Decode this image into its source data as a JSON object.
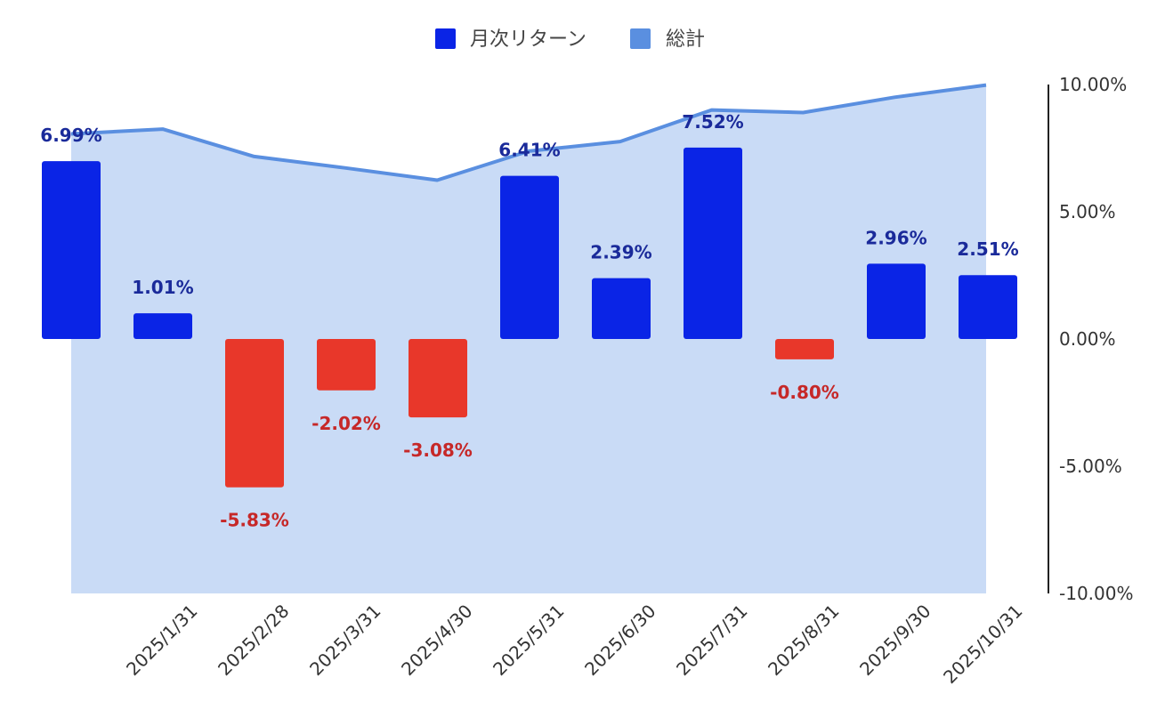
{
  "chart_data": {
    "type": "bar",
    "title": "",
    "xlabel": "",
    "ylabel": "",
    "categories": [
      "",
      "2025/1/31",
      "2025/2/28",
      "2025/3/31",
      "2025/4/30",
      "2025/5/31",
      "2025/6/30",
      "2025/7/31",
      "2025/8/31",
      "2025/9/30",
      "2025/10/31"
    ],
    "series": [
      {
        "name": "月次リターン",
        "kind": "bar",
        "values": [
          6.99,
          1.01,
          -5.83,
          -2.02,
          -3.08,
          6.41,
          2.39,
          7.52,
          -0.8,
          2.96,
          2.51
        ],
        "labels": [
          "6.99%",
          "1.01%",
          "-5.83%",
          "-2.02%",
          "-3.08%",
          "6.41%",
          "2.39%",
          "7.52%",
          "-0.80%",
          "2.96%",
          "2.51%"
        ]
      },
      {
        "name": "総計",
        "kind": "area",
        "values": [
          8.06,
          8.25,
          7.17,
          6.72,
          6.24,
          7.38,
          7.76,
          9.0,
          8.9,
          9.5,
          9.98
        ]
      }
    ],
    "ylim": [
      -10,
      10
    ],
    "y_ticks": [
      10,
      5,
      0,
      -5,
      -10
    ],
    "y_tick_labels": [
      "10.00%",
      "5.00%",
      "0.00%",
      "-5.00%",
      "-10.00%"
    ],
    "y_axis_side": "right",
    "grid": false,
    "legend_position": "top-center",
    "colors": {
      "positive_bar": "#0a24e6",
      "negative_bar": "#e8372a",
      "positive_label": "#1a2a9a",
      "negative_label": "#c62828",
      "area_fill": "#c9dbf6",
      "area_line": "#5a8fe0",
      "legend_bar": "#0a24e6",
      "legend_area": "#5a8fe0",
      "axis": "#222222"
    }
  }
}
